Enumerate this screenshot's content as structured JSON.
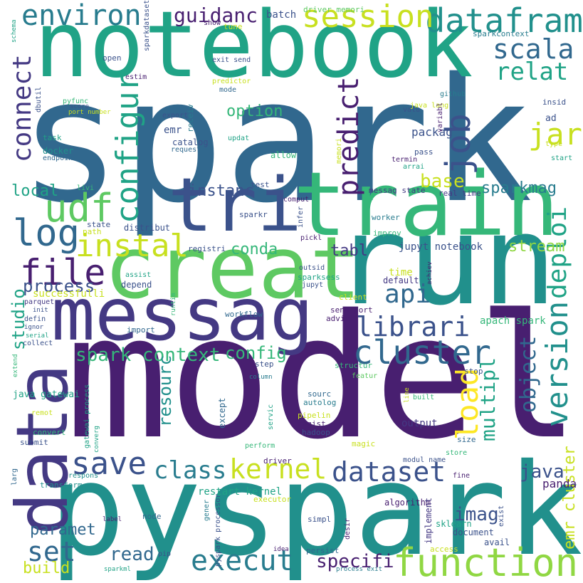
{
  "palette": {
    "dark_purple": "#481f70",
    "indigo": "#443983",
    "slate_blue": "#3b528b",
    "steel_blue": "#31688e",
    "blue_teal": "#287c8e",
    "teal": "#21908c",
    "green_teal": "#20a386",
    "green": "#35b779",
    "light_green": "#5ec962",
    "lime": "#90d743",
    "yellow_green": "#c8e020",
    "yellow": "#fde725"
  },
  "words": [
    {
      "text": "spark",
      "color": "#31688e"
    },
    {
      "text": "model",
      "color": "#481f70"
    },
    {
      "text": "pyspark",
      "color": "#21908c"
    },
    {
      "text": "notebook",
      "color": "#20a386"
    },
    {
      "text": "run",
      "color": "#21908c"
    },
    {
      "text": "creat",
      "color": "#5ec962"
    },
    {
      "text": "train",
      "color": "#35b779"
    },
    {
      "text": "messag",
      "color": "#443983"
    },
    {
      "text": "tri",
      "color": "#3b528b"
    },
    {
      "text": "data",
      "color": "#443983"
    },
    {
      "text": "datafram",
      "color": "#21908c"
    },
    {
      "text": "session",
      "color": "#c8e020"
    },
    {
      "text": "environ",
      "color": "#287c8e"
    },
    {
      "text": "scala",
      "color": "#31688e"
    },
    {
      "text": "relat",
      "color": "#20a386"
    },
    {
      "text": "guidanc",
      "color": "#481f70"
    },
    {
      "text": "job",
      "color": "#3b528b"
    },
    {
      "text": "jar",
      "color": "#c8e020"
    },
    {
      "text": "configur",
      "color": "#20a386"
    },
    {
      "text": "connect",
      "color": "#443983"
    },
    {
      "text": "predict",
      "color": "#481f70"
    },
    {
      "text": "udf",
      "color": "#5ec962"
    },
    {
      "text": "log",
      "color": "#31688e"
    },
    {
      "text": "instal",
      "color": "#c8e020"
    },
    {
      "text": "file",
      "color": "#481f70"
    },
    {
      "text": "option",
      "color": "#35b779"
    },
    {
      "text": "instanc",
      "color": "#3b528b"
    },
    {
      "text": "sparkmag",
      "color": "#287c8e"
    },
    {
      "text": "base",
      "color": "#c8e020"
    },
    {
      "text": "deploi",
      "color": "#20a386"
    },
    {
      "text": "local",
      "color": "#20a386"
    },
    {
      "text": "conda",
      "color": "#35b779"
    },
    {
      "text": "stream",
      "color": "#90d743"
    },
    {
      "text": "tabl",
      "color": "#443983"
    },
    {
      "text": "api",
      "color": "#31688e"
    },
    {
      "text": "librari",
      "color": "#3b528b"
    },
    {
      "text": "process",
      "color": "#3b528b"
    },
    {
      "text": "cluster",
      "color": "#31688e"
    },
    {
      "text": "version",
      "color": "#21908c"
    },
    {
      "text": "spark context",
      "color": "#35b779"
    },
    {
      "text": "config",
      "color": "#35b779"
    },
    {
      "text": "studio",
      "color": "#20a386"
    },
    {
      "text": "object",
      "color": "#31688e"
    },
    {
      "text": "multipl",
      "color": "#20a386"
    },
    {
      "text": "load",
      "color": "#fde725"
    },
    {
      "text": "resourc",
      "color": "#21908c"
    },
    {
      "text": "save",
      "color": "#3b528b"
    },
    {
      "text": "class",
      "color": "#287c8e"
    },
    {
      "text": "kernel",
      "color": "#c8e020"
    },
    {
      "text": "dataset",
      "color": "#3b528b"
    },
    {
      "text": "java",
      "color": "#3b528b"
    },
    {
      "text": "emr cluster",
      "color": "#c8e020"
    },
    {
      "text": "imag",
      "color": "#3b528b"
    },
    {
      "text": "paramet",
      "color": "#31688e"
    },
    {
      "text": "set",
      "color": "#31688e"
    },
    {
      "text": "execut",
      "color": "#287c8e"
    },
    {
      "text": "function",
      "color": "#90d743"
    },
    {
      "text": "read",
      "color": "#31688e"
    },
    {
      "text": "specifi",
      "color": "#481f70"
    },
    {
      "text": "build",
      "color": "#c8e020"
    },
    {
      "text": "panda",
      "color": "#481f70"
    },
    {
      "text": "batch",
      "color": "#3b528b"
    },
    {
      "text": "emr",
      "color": "#3b528b"
    },
    {
      "text": "catalog",
      "color": "#3b528b"
    },
    {
      "text": "packag",
      "color": "#3b528b"
    },
    {
      "text": "sparkdataset",
      "color": "#3b528b"
    },
    {
      "text": "driver memori",
      "color": "#5ec962"
    },
    {
      "text": "sparkcontext",
      "color": "#287c8e"
    },
    {
      "text": "jupyt notebook",
      "color": "#3b528b"
    },
    {
      "text": "apach spark",
      "color": "#35b779"
    },
    {
      "text": "messag state",
      "color": "#443983"
    },
    {
      "text": "real time",
      "color": "#443983"
    },
    {
      "text": "successfulli",
      "color": "#c8e020"
    },
    {
      "text": "distribut",
      "color": "#3b528b"
    },
    {
      "text": "output",
      "color": "#443983"
    },
    {
      "text": "java gatewai",
      "color": "#20a386"
    },
    {
      "text": "sparksess",
      "color": "#20a386"
    },
    {
      "text": "depend",
      "color": "#3b528b"
    },
    {
      "text": "default",
      "color": "#443983"
    },
    {
      "text": "time",
      "color": "#c8e020"
    },
    {
      "text": "send port",
      "color": "#481f70"
    },
    {
      "text": "workflow",
      "color": "#31688e"
    },
    {
      "text": "restart kernel",
      "color": "#20a386"
    },
    {
      "text": "pyspark processor",
      "color": "#3b528b"
    },
    {
      "text": "algorithm",
      "color": "#481f70"
    },
    {
      "text": "sklearn",
      "color": "#20a386"
    },
    {
      "text": "implement",
      "color": "#443983"
    },
    {
      "text": "document",
      "color": "#3b528b"
    },
    {
      "text": "avail",
      "color": "#3b528b"
    },
    {
      "text": "access",
      "color": "#c8e020"
    },
    {
      "text": "persist",
      "color": "#31688e"
    },
    {
      "text": "process exit",
      "color": "#287c8e"
    },
    {
      "text": "idea",
      "color": "#481f70"
    },
    {
      "text": "pip",
      "color": "#3b528b"
    },
    {
      "text": "sparkml",
      "color": "#20a386"
    },
    {
      "text": "simpl",
      "color": "#3b528b"
    },
    {
      "text": "node",
      "color": "#31688e"
    },
    {
      "text": "label",
      "color": "#481f70"
    },
    {
      "text": "gener",
      "color": "#287c8e"
    },
    {
      "text": "transform",
      "color": "#21908c"
    },
    {
      "text": "respons",
      "color": "#21908c"
    },
    {
      "text": "larg",
      "color": "#31688e"
    },
    {
      "text": "converg",
      "color": "#20a386"
    },
    {
      "text": "convert",
      "color": "#35b779"
    },
    {
      "text": "submit",
      "color": "#3b528b"
    },
    {
      "text": "remot",
      "color": "#c8e020"
    },
    {
      "text": "gatewai process",
      "color": "#20a386"
    },
    {
      "text": "except",
      "color": "#31688e"
    },
    {
      "text": "sourc",
      "color": "#31688e"
    },
    {
      "text": "autolog",
      "color": "#287c8e"
    },
    {
      "text": "regist",
      "color": "#481f70"
    },
    {
      "text": "hadoop",
      "color": "#3b528b"
    },
    {
      "text": "pipelin",
      "color": "#c8e020"
    },
    {
      "text": "servic",
      "color": "#20a386"
    },
    {
      "text": "magic",
      "color": "#c8e020"
    },
    {
      "text": "perform",
      "color": "#35b779"
    },
    {
      "text": "driver",
      "color": "#481f70"
    },
    {
      "text": "modul name",
      "color": "#3b528b"
    },
    {
      "text": "fine",
      "color": "#481f70"
    },
    {
      "text": "exist",
      "color": "#3b528b"
    },
    {
      "text": "desir",
      "color": "#481f70"
    },
    {
      "text": "executor",
      "color": "#c8e020"
    },
    {
      "text": "line",
      "color": "#c8e020"
    },
    {
      "text": "built",
      "color": "#35b779"
    },
    {
      "text": "stop",
      "color": "#3b528b"
    },
    {
      "text": "size",
      "color": "#31688e"
    },
    {
      "text": "store",
      "color": "#35b779"
    },
    {
      "text": "featur",
      "color": "#5ec962"
    },
    {
      "text": "structur",
      "color": "#35b779"
    },
    {
      "text": "step",
      "color": "#3b528b"
    },
    {
      "text": "column",
      "color": "#287c8e"
    },
    {
      "text": "client",
      "color": "#c8e020"
    },
    {
      "text": "advic",
      "color": "#481f70"
    },
    {
      "text": "jupyt",
      "color": "#3b528b"
    },
    {
      "text": "outsid",
      "color": "#3b528b"
    },
    {
      "text": "achiev",
      "color": "#481f70"
    },
    {
      "text": "improv",
      "color": "#35b779"
    },
    {
      "text": "worker",
      "color": "#287c8e"
    },
    {
      "text": "pickl",
      "color": "#481f70"
    },
    {
      "text": "infer",
      "color": "#3b528b"
    },
    {
      "text": "comput",
      "color": "#481f70"
    },
    {
      "text": "sparkr",
      "color": "#3b528b"
    },
    {
      "text": "registri",
      "color": "#3b528b"
    },
    {
      "text": "runtim",
      "color": "#35b779"
    },
    {
      "text": "import",
      "color": "#31688e"
    },
    {
      "text": "assist",
      "color": "#20a386"
    },
    {
      "text": "state",
      "color": "#3b528b"
    },
    {
      "text": "path",
      "color": "#c8e020"
    },
    {
      "text": "livi",
      "color": "#35b779"
    },
    {
      "text": "test",
      "color": "#3b528b"
    },
    {
      "text": "memori",
      "color": "#c8e020"
    },
    {
      "text": "allow",
      "color": "#35b779"
    },
    {
      "text": "updat",
      "color": "#20a386"
    },
    {
      "text": "request",
      "color": "#31688e"
    },
    {
      "text": "receiv",
      "color": "#287c8e"
    },
    {
      "text": "export",
      "color": "#3b528b"
    },
    {
      "text": "estim",
      "color": "#481f70"
    },
    {
      "text": "open",
      "color": "#3b528b"
    },
    {
      "text": "show",
      "color": "#481f70"
    },
    {
      "text": "tune",
      "color": "#c8e020"
    },
    {
      "text": "exit send",
      "color": "#3b528b"
    },
    {
      "text": "predictor",
      "color": "#c8e020"
    },
    {
      "text": "mode",
      "color": "#31688e"
    },
    {
      "text": "github",
      "color": "#287c8e"
    },
    {
      "text": "insid",
      "color": "#3b528b"
    },
    {
      "text": "ad",
      "color": "#3b528b"
    },
    {
      "text": "type",
      "color": "#c8e020"
    },
    {
      "text": "start",
      "color": "#20a386"
    },
    {
      "text": "valu",
      "color": "#3b528b"
    },
    {
      "text": "java lang",
      "color": "#c8e020"
    },
    {
      "text": "variabl",
      "color": "#481f70"
    },
    {
      "text": "termin",
      "color": "#481f70"
    },
    {
      "text": "pass",
      "color": "#3b528b"
    },
    {
      "text": "arrai",
      "color": "#20a386"
    },
    {
      "text": "pyfunc",
      "color": "#35b779"
    },
    {
      "text": "score",
      "color": "#3b528b"
    },
    {
      "text": "port number",
      "color": "#c8e020"
    },
    {
      "text": "dbutil",
      "color": "#3b528b"
    },
    {
      "text": "task",
      "color": "#20a386"
    },
    {
      "text": "docker",
      "color": "#21908c"
    },
    {
      "text": "endpoint",
      "color": "#31688e"
    },
    {
      "text": "schema",
      "color": "#20a386"
    },
    {
      "text": "parquet",
      "color": "#443983"
    },
    {
      "text": "init",
      "color": "#3b528b"
    },
    {
      "text": "defin",
      "color": "#3b528b"
    },
    {
      "text": "ignor",
      "color": "#3b528b"
    },
    {
      "text": "serial",
      "color": "#20a386"
    },
    {
      "text": "collect",
      "color": "#3b528b"
    },
    {
      "text": "extend",
      "color": "#35b779"
    }
  ]
}
